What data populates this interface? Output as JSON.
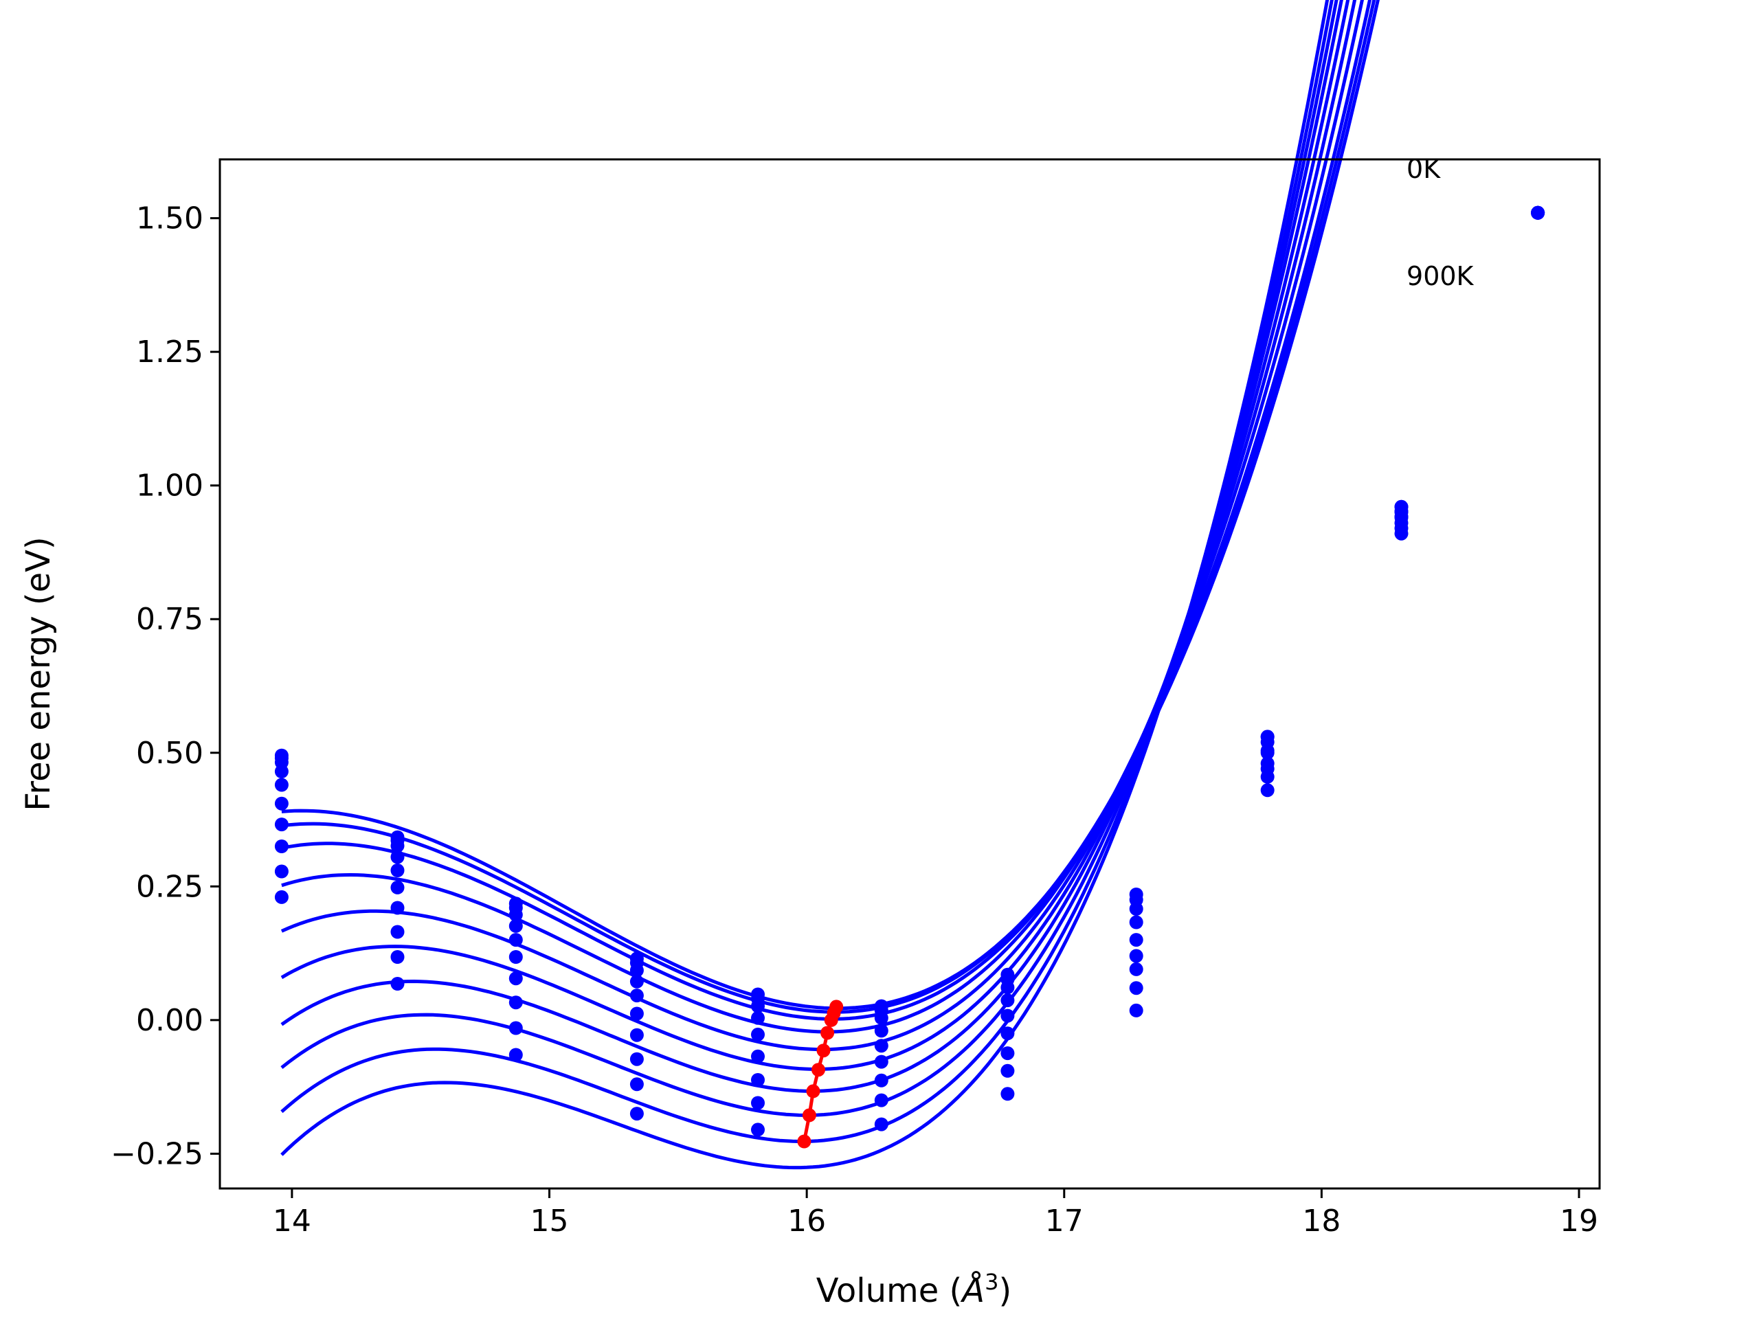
{
  "chart_data": {
    "type": "line",
    "title": "",
    "xlabel_main": "Volume (",
    "xlabel_unit": "Å",
    "xlabel_sup": "3",
    "xlabel_end": ")",
    "ylabel": "Free energy (eV)",
    "xlim": [
      13.72,
      19.08
    ],
    "ylim": [
      -0.315,
      1.61
    ],
    "x_ticks": [
      14,
      15,
      16,
      17,
      18,
      19
    ],
    "x_tick_labels": [
      "14",
      "15",
      "16",
      "17",
      "18",
      "19"
    ],
    "y_ticks": [
      -0.25,
      0.0,
      0.25,
      0.5,
      0.75,
      1.0,
      1.25,
      1.5
    ],
    "y_tick_labels": [
      "−0.25",
      "0.00",
      "0.25",
      "0.50",
      "0.75",
      "1.00",
      "1.25",
      "1.50"
    ],
    "annotations": [
      {
        "text": "0K",
        "x": 18.33,
        "y": 1.575
      },
      {
        "text": "900K",
        "x": 18.33,
        "y": 1.375
      }
    ],
    "volumes": [
      13.96,
      14.41,
      14.87,
      15.34,
      15.81,
      16.29,
      16.78,
      17.28,
      17.79,
      18.31,
      18.84
    ],
    "series": [
      {
        "fit": {
          "v0": 16.12,
          "f0": 0.022,
          "a": 0.256,
          "b": 0.082
        },
        "points": [
          0.495,
          0.342,
          0.218,
          0.115,
          0.048,
          0.026,
          0.085,
          0.235,
          0.53,
          0.96,
          1.51
        ]
      },
      {
        "fit": {
          "v0": 16.11,
          "f0": 0.015,
          "a": 0.256,
          "b": 0.084
        },
        "points": [
          0.49,
          0.336,
          0.21,
          0.107,
          0.04,
          0.018,
          0.076,
          0.225,
          0.52,
          0.952,
          1.51
        ]
      },
      {
        "fit": {
          "v0": 16.1,
          "f0": 0.002,
          "a": 0.256,
          "b": 0.087
        },
        "points": [
          0.482,
          0.326,
          0.197,
          0.093,
          0.026,
          0.004,
          0.061,
          0.208,
          0.504,
          0.942,
          1.51
        ]
      },
      {
        "fit": {
          "v0": 16.08,
          "f0": -0.022,
          "a": 0.256,
          "b": 0.092
        },
        "points": [
          0.465,
          0.305,
          0.176,
          0.072,
          0.004,
          -0.02,
          0.037,
          0.183,
          0.48,
          0.93,
          1.51
        ]
      },
      {
        "fit": {
          "v0": 16.06,
          "f0": -0.055,
          "a": 0.256,
          "b": 0.098
        },
        "points": [
          0.44,
          0.28,
          0.15,
          0.046,
          -0.027,
          -0.048,
          0.008,
          0.15,
          0.455,
          0.92,
          1.51
        ]
      },
      {
        "fit": {
          "v0": 16.04,
          "f0": -0.092,
          "a": 0.256,
          "b": 0.104
        },
        "points": [
          0.405,
          0.248,
          0.118,
          0.012,
          -0.068,
          -0.078,
          -0.025,
          0.12,
          0.43,
          0.91,
          1.51
        ]
      },
      {
        "fit": {
          "v0": 16.02,
          "f0": -0.133,
          "a": 0.256,
          "b": 0.11
        },
        "points": [
          0.366,
          0.21,
          0.078,
          -0.028,
          -0.112,
          -0.113,
          -0.062,
          0.095,
          0.47,
          0.94,
          1.51
        ]
      },
      {
        "fit": {
          "v0": 16.0,
          "f0": -0.178,
          "a": 0.256,
          "b": 0.115
        },
        "points": [
          0.325,
          0.165,
          0.033,
          -0.073,
          -0.155,
          -0.15,
          -0.095,
          0.06,
          0.5,
          0.95,
          1.51
        ]
      },
      {
        "fit": {
          "v0": 15.98,
          "f0": -0.227,
          "a": 0.256,
          "b": 0.12
        },
        "points": [
          0.278,
          0.118,
          -0.015,
          -0.12,
          -0.205,
          -0.195,
          -0.138,
          0.018,
          0.53,
          0.96,
          1.51
        ]
      },
      {
        "fit": {
          "v0": 15.96,
          "f0": -0.276,
          "a": 0.256,
          "b": 0.125
        },
        "points": [
          0.23,
          0.068,
          -0.065,
          -0.175,
          null,
          null,
          null,
          null,
          null,
          null,
          null
        ]
      }
    ],
    "minima_path": [
      {
        "x": 16.115,
        "y": 0.025
      },
      {
        "x": 16.105,
        "y": 0.013
      },
      {
        "x": 16.095,
        "y": 0.0
      },
      {
        "x": 16.08,
        "y": -0.024
      },
      {
        "x": 16.065,
        "y": -0.057
      },
      {
        "x": 16.045,
        "y": -0.093
      },
      {
        "x": 16.025,
        "y": -0.133
      },
      {
        "x": 16.01,
        "y": -0.178
      },
      {
        "x": 15.99,
        "y": -0.227
      }
    ],
    "colors": {
      "curves": "#0000ff",
      "minima": "#ff0000",
      "axes": "#000000"
    },
    "grid": false
  }
}
